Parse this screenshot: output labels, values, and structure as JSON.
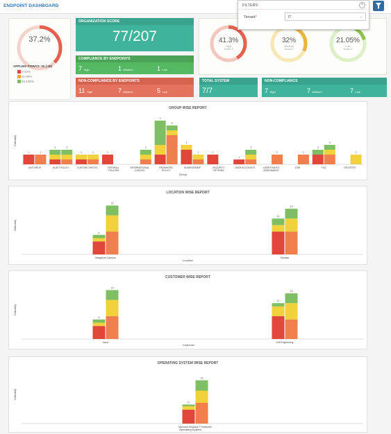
{
  "header": {
    "title": "ENDPOINT DASHBOARD"
  },
  "filters": {
    "title": "FILTERS",
    "close_symbol": "×",
    "tenant_label": "Tenant",
    "tenant_required": "*",
    "tenant_value": "IT"
  },
  "applied_points": {
    "percent": "37.2%",
    "label": "APPLIED POINTS: 32 (:45)",
    "legend": [
      "0-40%",
      "41-80%",
      "81-100%"
    ],
    "value": 0.372
  },
  "org_score": {
    "header": "ORGANIZATION SCORE",
    "value": "77/207"
  },
  "compliance": {
    "header": "COMPLIANCE BY ENDPOINTS",
    "high": "7",
    "high_label": "High",
    "medium": "1",
    "medium_label": "Medium",
    "low": "1",
    "low_label": "Low"
  },
  "non_compliance_endpoints": {
    "header": "NON-COMPLIANCE BY ENDPOINTS",
    "high": "11",
    "high_label": "High",
    "medium": "7",
    "medium_label": "Medium",
    "low": "5",
    "low_label": "Low"
  },
  "score_donuts": [
    {
      "percent": "41.3%",
      "line1": "High",
      "line2": "Score 3",
      "value": 0.413,
      "color": "#e46150",
      "track": "#f3c7bf"
    },
    {
      "percent": "32%",
      "line1": "Medium",
      "line2": "Score 2",
      "value": 0.32,
      "color": "#eab53c",
      "track": "#f6e7b4"
    },
    {
      "percent": "21.05%",
      "line1": "Low",
      "line2": "Score 1",
      "value": 0.2105,
      "color": "#8dc24d",
      "track": "#dcefc7"
    }
  ],
  "total_system": {
    "header": "TOTAL SYSTEM",
    "value": "7/7"
  },
  "non_compliance": {
    "header": "NON-COMPLIANCE",
    "high": "7",
    "high_label": "High",
    "medium": "7",
    "medium_label": "Medium",
    "low": "7",
    "low_label": "Low"
  },
  "colors": {
    "red": "#e0473a",
    "orange": "#ef7f4d",
    "yellow": "#f2d23c",
    "green": "#7dbf62",
    "teal": "#3fb39b",
    "salmon": "#e3735f"
  },
  "chart_data": [
    {
      "type": "bar",
      "title": "GROUP WISE REPORT",
      "xlabel": "Group",
      "ylabel": "Criticality",
      "categories": [
        "ANTIVIRUS",
        "AUDIT POLICY",
        "CUSTOM CHECKS",
        "FIREWALL POLICIES",
        "INFORMATIONAL CHECKS",
        "PASSWORD POLICY",
        "SHAREDSNMP",
        "SECURITY OPTIONS",
        "USER ACCOUNTS",
        "USER RIGHTS ASSIGNMENT",
        "USB",
        "FILE",
        "REGISTRY"
      ],
      "series": [
        {
          "color": "#e0473a",
          "stack": "a",
          "values": [
            2,
            1,
            1,
            2,
            0,
            2,
            3,
            2,
            1,
            0,
            0,
            2,
            0
          ]
        },
        {
          "color": "#f2d23c",
          "stack": "a",
          "values": [
            0,
            1,
            1,
            0,
            0,
            2,
            1,
            0,
            0,
            0,
            0,
            0,
            0
          ]
        },
        {
          "color": "#7dbf62",
          "stack": "a",
          "values": [
            0,
            1,
            0,
            0,
            0,
            5,
            0,
            0,
            0,
            0,
            0,
            1,
            0
          ]
        },
        {
          "color": "#ef7f4d",
          "stack": "b",
          "values": [
            2,
            1,
            1,
            0,
            1,
            6,
            1,
            0,
            1,
            2,
            2,
            2,
            0
          ]
        },
        {
          "color": "#f2d23c",
          "stack": "b",
          "values": [
            0,
            1,
            1,
            0,
            1,
            1,
            1,
            0,
            1,
            0,
            0,
            1,
            2
          ]
        },
        {
          "color": "#7dbf62",
          "stack": "b",
          "values": [
            0,
            1,
            0,
            0,
            1,
            1,
            0,
            0,
            1,
            0,
            0,
            1,
            0
          ]
        }
      ],
      "bar_labels": [
        [
          "2",
          "2"
        ],
        [
          "3",
          "3"
        ],
        [
          "2",
          "2"
        ],
        [
          "2",
          ""
        ],
        [
          "",
          "3"
        ],
        [
          "9",
          "8"
        ],
        [
          "4",
          "2"
        ],
        [
          "2",
          ""
        ],
        [
          "1",
          "3"
        ],
        [
          "",
          "2"
        ],
        [
          "",
          "2"
        ],
        [
          "3",
          "4"
        ],
        [
          "",
          "2"
        ]
      ],
      "ylim": [
        0,
        10
      ]
    },
    {
      "type": "bar",
      "title": "LOCATION WISE REPORT",
      "xlabel": "Location",
      "ylabel": "Criticality",
      "categories": [
        "Bangalore-Campus",
        "Mumbai"
      ],
      "series": [
        {
          "color": "#e0473a",
          "stack": "a",
          "values": [
            4,
            7
          ]
        },
        {
          "color": "#f2d23c",
          "stack": "a",
          "values": [
            1,
            2
          ]
        },
        {
          "color": "#7dbf62",
          "stack": "a",
          "values": [
            1,
            2
          ]
        },
        {
          "color": "#ef7f4d",
          "stack": "b",
          "values": [
            7,
            7
          ]
        },
        {
          "color": "#f2d23c",
          "stack": "b",
          "values": [
            5,
            4
          ]
        },
        {
          "color": "#7dbf62",
          "stack": "b",
          "values": [
            3,
            3
          ]
        }
      ],
      "bar_labels": [
        [
          "6",
          "15"
        ],
        [
          "11",
          "14"
        ]
      ],
      "ylim": [
        0,
        17
      ]
    },
    {
      "type": "bar",
      "title": "CUSTOMER WISE REPORT",
      "xlabel": "Customer",
      "ylabel": "Criticality",
      "categories": [
        "Adani",
        "Dell Engineering"
      ],
      "series": [
        {
          "color": "#e0473a",
          "stack": "a",
          "values": [
            4,
            7
          ]
        },
        {
          "color": "#f2d23c",
          "stack": "a",
          "values": [
            1,
            3
          ]
        },
        {
          "color": "#7dbf62",
          "stack": "a",
          "values": [
            1,
            1
          ]
        },
        {
          "color": "#ef7f4d",
          "stack": "b",
          "values": [
            7,
            6
          ]
        },
        {
          "color": "#f2d23c",
          "stack": "b",
          "values": [
            5,
            5
          ]
        },
        {
          "color": "#7dbf62",
          "stack": "b",
          "values": [
            3,
            3
          ]
        }
      ],
      "bar_labels": [
        [
          "6",
          "15"
        ],
        [
          "11",
          "14"
        ]
      ],
      "ylim": [
        0,
        17
      ]
    },
    {
      "type": "bar",
      "title": "OPERATING SYSTEM WISE REPORT",
      "xlabel": "Operating System",
      "ylabel": "Criticality",
      "categories": [
        "Microsoft Windows 7 Enterprise"
      ],
      "series": [
        {
          "color": "#e0473a",
          "stack": "a",
          "values": [
            8
          ]
        },
        {
          "color": "#f2d23c",
          "stack": "a",
          "values": [
            2
          ]
        },
        {
          "color": "#7dbf62",
          "stack": "a",
          "values": [
            1
          ]
        },
        {
          "color": "#ef7f4d",
          "stack": "b",
          "values": [
            12
          ]
        },
        {
          "color": "#f2d23c",
          "stack": "b",
          "values": [
            7
          ]
        },
        {
          "color": "#7dbf62",
          "stack": "b",
          "values": [
            6
          ]
        }
      ],
      "bar_labels": [
        [
          "11",
          "25"
        ]
      ],
      "ylim": [
        0,
        28
      ]
    }
  ]
}
